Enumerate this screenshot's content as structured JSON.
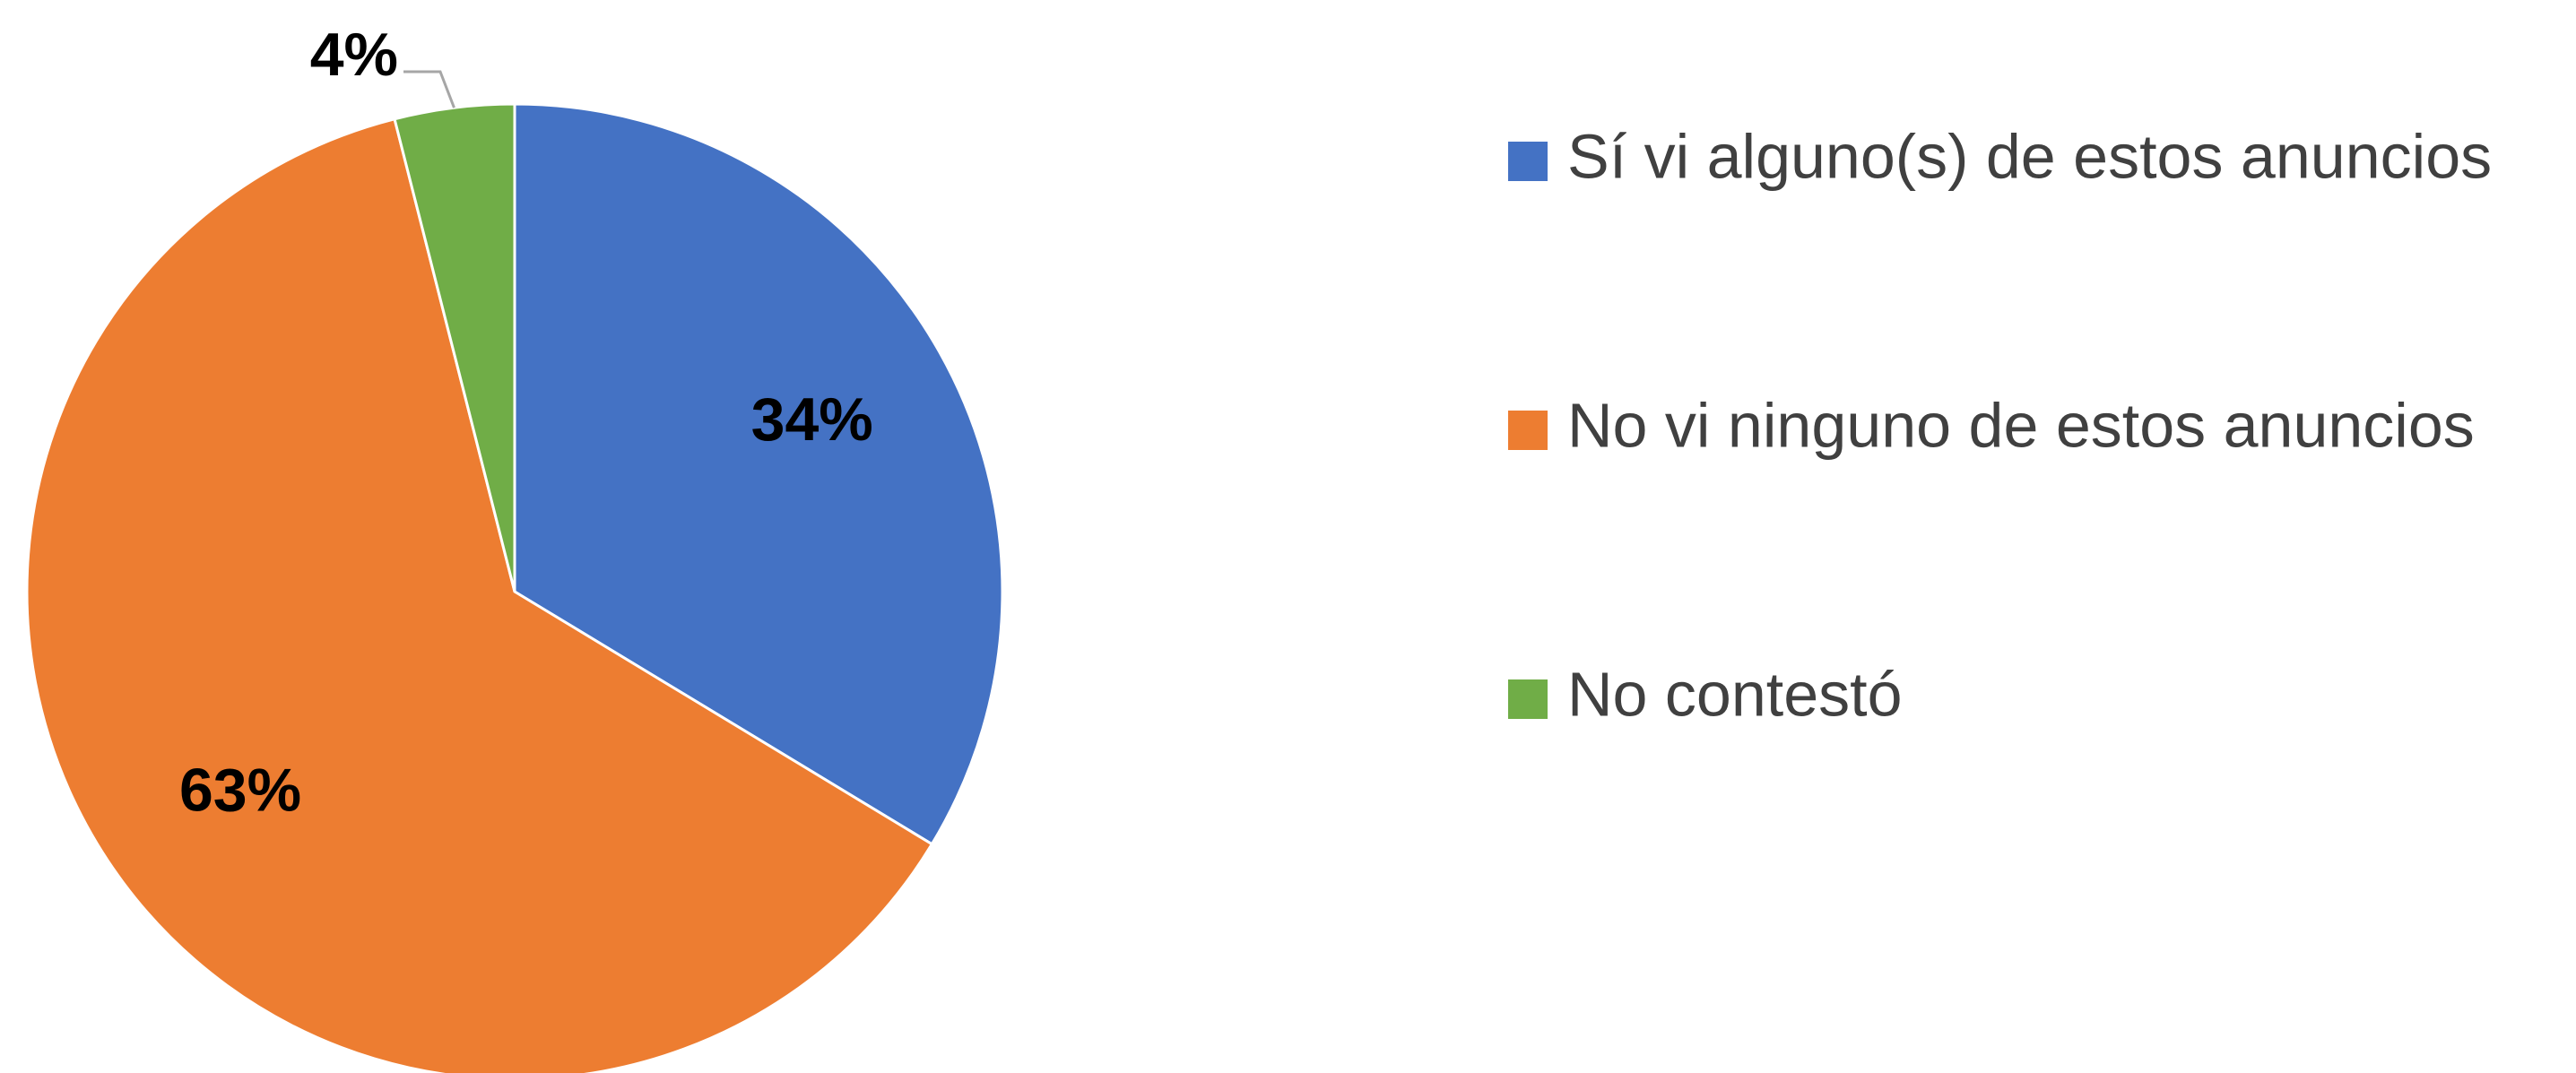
{
  "chart_data": {
    "type": "pie",
    "categories": [
      "Sí vi alguno(s) de estos anuncios",
      "No vi ninguno de estos anuncios",
      "No contestó"
    ],
    "values": [
      34,
      63,
      4
    ],
    "value_labels": [
      "34%",
      "63%",
      "4%"
    ],
    "colors": [
      "#4472c4",
      "#ed7d31",
      "#70ad47"
    ],
    "legend": "right"
  }
}
